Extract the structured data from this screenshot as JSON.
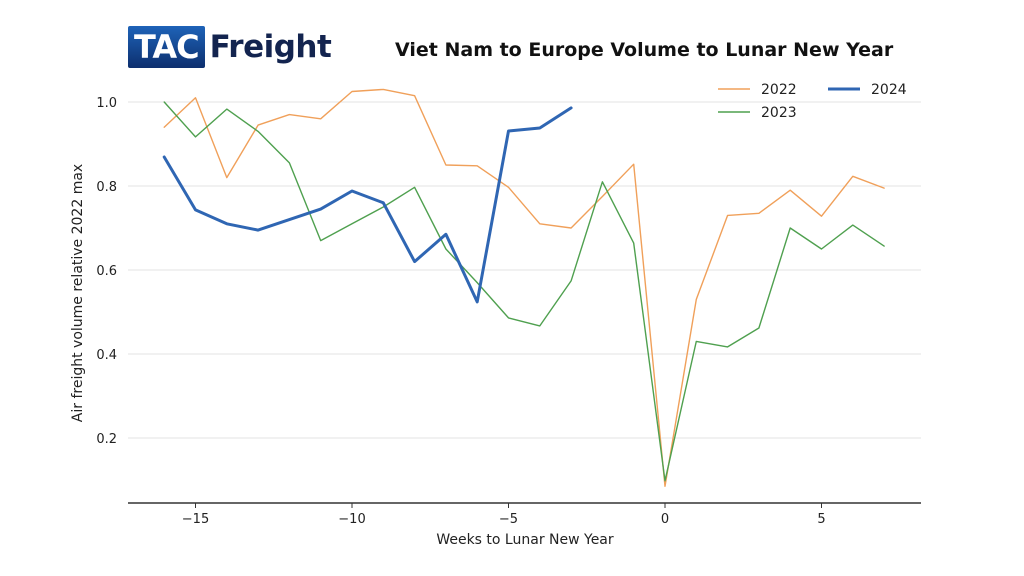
{
  "brand": {
    "logo_box_text": "TAC",
    "logo_text": "Freight"
  },
  "colors": {
    "series_2022": "#f0a05a",
    "series_2023": "#4fa04f",
    "series_2024": "#2f66b3",
    "grid": "#e3e3e3",
    "axis": "#333333"
  },
  "chart_data": {
    "type": "line",
    "title": "Viet Nam to Europe Volume to Lunar New Year",
    "xlabel": "Weeks to Lunar New Year",
    "ylabel": "Air freight volume relative 2022 max",
    "xlim": [
      -17.2,
      8.2
    ],
    "ylim": [
      0.0,
      1.05
    ],
    "xticks": [
      -15,
      -10,
      -5,
      0,
      5
    ],
    "xtick_labels": [
      "−15",
      "−10",
      "−5",
      "0",
      "5"
    ],
    "yticks": [
      0.2,
      0.4,
      0.6,
      0.8,
      1.0
    ],
    "ytick_labels": [
      "0.2",
      "0.4",
      "0.6",
      "0.8",
      "1.0"
    ],
    "grid": "horizontal",
    "legend_position": "top-right",
    "series": [
      {
        "name": "2022",
        "x": [
          -16,
          -15,
          -14,
          -13,
          -12,
          -11,
          -10,
          -9,
          -8,
          -7,
          -6,
          -5,
          -4,
          -3,
          -2,
          -1,
          0,
          1,
          2,
          3,
          4,
          5,
          6,
          7
        ],
        "values": [
          0.94,
          1.01,
          0.82,
          0.945,
          0.97,
          0.96,
          1.025,
          1.03,
          1.015,
          0.85,
          0.848,
          0.797,
          0.71,
          0.7,
          0.775,
          0.852,
          0.085,
          0.53,
          0.73,
          0.735,
          0.79,
          0.728,
          0.823,
          0.795
        ]
      },
      {
        "name": "2023",
        "x": [
          -16,
          -15,
          -14,
          -13,
          -12,
          -11,
          -10,
          -9,
          -8,
          -7,
          -6,
          -5,
          -4,
          -3,
          -2,
          -1,
          0,
          1,
          2,
          3,
          4,
          5,
          6,
          7
        ],
        "values": [
          1.0,
          0.917,
          0.983,
          0.93,
          0.855,
          0.67,
          0.71,
          0.75,
          0.797,
          0.65,
          0.57,
          0.486,
          0.467,
          0.574,
          0.81,
          0.664,
          0.098,
          0.43,
          0.417,
          0.462,
          0.7,
          0.65,
          0.707,
          0.657
        ]
      },
      {
        "name": "2024",
        "x": [
          -16,
          -15,
          -14,
          -13,
          -12,
          -11,
          -10,
          -9,
          -8,
          -7,
          -6,
          -5,
          -4,
          -3
        ],
        "values": [
          0.869,
          0.743,
          0.71,
          0.695,
          0.72,
          0.745,
          0.788,
          0.76,
          0.62,
          0.685,
          0.524,
          0.931,
          0.938,
          0.986
        ]
      }
    ],
    "legend": [
      "2022",
      "2024",
      "2023"
    ]
  }
}
